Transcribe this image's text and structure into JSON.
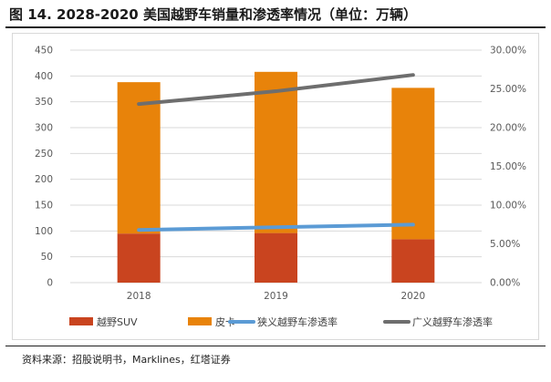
{
  "figure_title": "图 14. 2028-2020 美国越野车销量和渗透率情况（单位：万辆）",
  "source": "资料来源：招股说明书，Marklines，红塔证券",
  "chart_data": {
    "type": "bar",
    "stacked": true,
    "categories": [
      "2018",
      "2019",
      "2020"
    ],
    "series": [
      {
        "name": "越野SUV",
        "type": "bar",
        "axis": "left",
        "values": [
          95,
          96,
          84
        ],
        "color": "#C9441F"
      },
      {
        "name": "皮卡",
        "type": "bar",
        "axis": "left",
        "values": [
          293,
          312,
          293
        ],
        "color": "#E8830A"
      },
      {
        "name": "狭义越野车渗透率",
        "type": "line",
        "axis": "right",
        "values": [
          0.068,
          0.0715,
          0.0748
        ],
        "color": "#5B9BD5"
      },
      {
        "name": "广义越野车渗透率",
        "type": "line",
        "axis": "right",
        "values": [
          0.2305,
          0.247,
          0.268
        ],
        "color": "#6E6E6E"
      }
    ],
    "y_left": {
      "min": 0,
      "max": 450,
      "step": 50,
      "ticks": [
        "0",
        "50",
        "100",
        "150",
        "200",
        "250",
        "300",
        "350",
        "400",
        "450"
      ]
    },
    "y_right": {
      "min": 0,
      "max": 0.3,
      "step": 0.05,
      "ticks": [
        "0.00%",
        "5.00%",
        "10.00%",
        "15.00%",
        "20.00%",
        "25.00%",
        "30.00%"
      ]
    },
    "grid": true,
    "legend_position": "bottom"
  }
}
